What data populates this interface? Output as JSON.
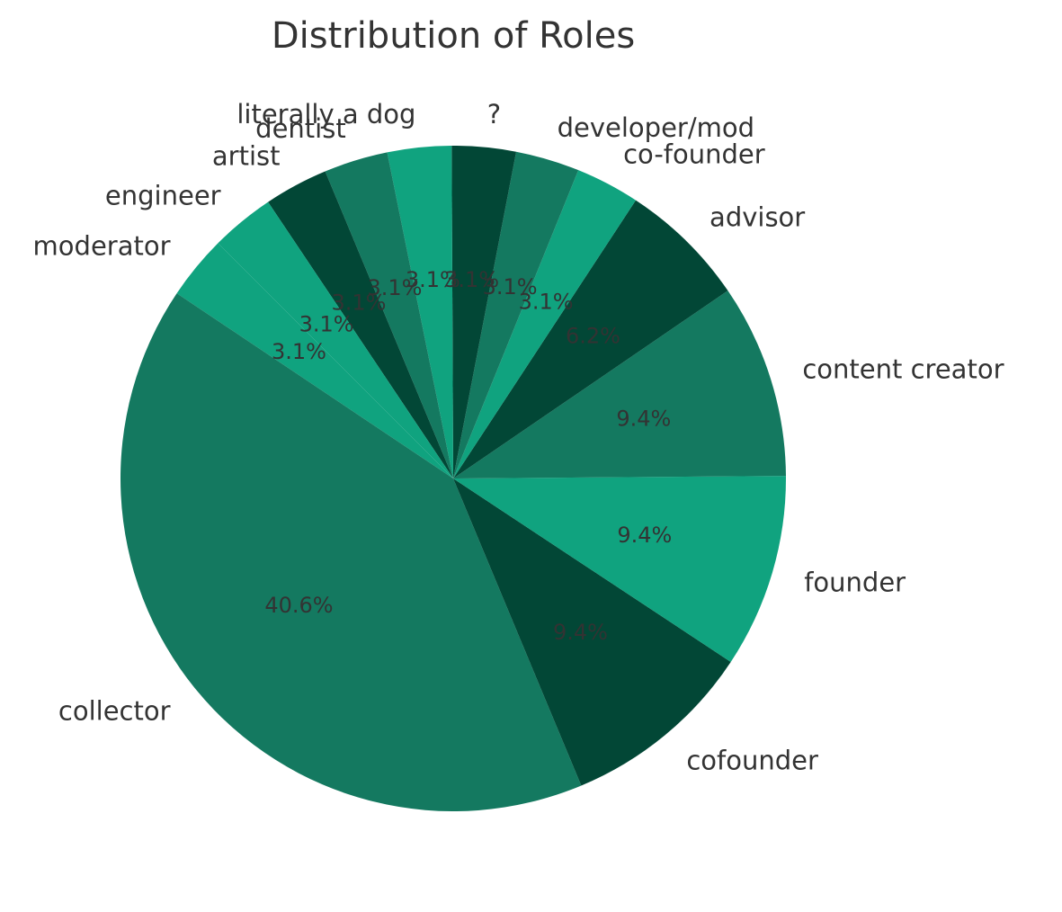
{
  "chart_data": {
    "type": "pie",
    "title": "Distribution of Roles",
    "start_angle_deg": 135,
    "direction": "counterclockwise",
    "colors": [
      "#10a37f",
      "#147960",
      "#024736"
    ],
    "slices": [
      {
        "label": "moderator",
        "value": 3.1,
        "pct_text": "3.1%"
      },
      {
        "label": "collector",
        "value": 40.6,
        "pct_text": "40.6%"
      },
      {
        "label": "cofounder",
        "value": 9.4,
        "pct_text": "9.4%"
      },
      {
        "label": "founder",
        "value": 9.4,
        "pct_text": "9.4%"
      },
      {
        "label": "content creator",
        "value": 9.4,
        "pct_text": "9.4%"
      },
      {
        "label": "advisor",
        "value": 6.2,
        "pct_text": "6.2%"
      },
      {
        "label": "co-founder",
        "value": 3.1,
        "pct_text": "3.1%"
      },
      {
        "label": "developer/mod",
        "value": 3.1,
        "pct_text": "3.1%"
      },
      {
        "label": "?",
        "value": 3.1,
        "pct_text": "3.1%"
      },
      {
        "label": "literally a dog",
        "value": 3.1,
        "pct_text": "3.1%"
      },
      {
        "label": "dentist",
        "value": 3.1,
        "pct_text": "3.1%"
      },
      {
        "label": "artist",
        "value": 3.1,
        "pct_text": "3.1%"
      },
      {
        "label": "engineer",
        "value": 3.1,
        "pct_text": "3.1%"
      }
    ]
  }
}
